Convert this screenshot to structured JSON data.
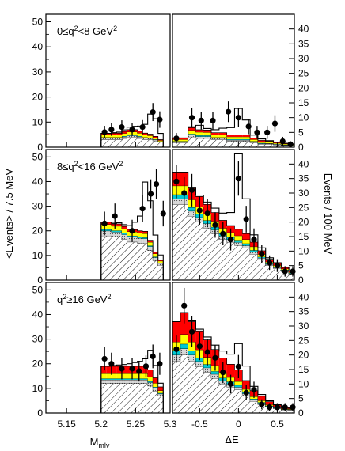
{
  "chart_data": {
    "type": "histogram",
    "left_axis": {
      "label": "<Events> / 7.5 MeV",
      "ticks": [
        "0",
        "10",
        "20",
        "30",
        "40",
        "50"
      ],
      "ylim": [
        0,
        53
      ]
    },
    "right_axis": {
      "label": "Events / 100 MeV",
      "ticks": [
        "0",
        "5",
        "10",
        "15",
        "20",
        "25",
        "30",
        "35",
        "40"
      ],
      "ylim": [
        0,
        45
      ]
    },
    "x_left": {
      "label": "M_mlv",
      "label_main": "M",
      "label_sub": "mlv",
      "ticks": [
        "5.15",
        "5.2",
        "5.25",
        "5.3"
      ],
      "xlim": [
        5.12,
        5.3
      ]
    },
    "x_right": {
      "label": "ΔE",
      "ticks": [
        "-0.5",
        "0",
        "0.5"
      ],
      "xlim": [
        -0.85,
        0.72
      ]
    },
    "colors": {
      "hatch_fill": "#ffffff",
      "light_gray": "#d9d9d9",
      "cyan": "#00c8d2",
      "yellow": "#ffff00",
      "red": "#ff0000",
      "line": "#000000"
    },
    "rows": [
      {
        "title": "0≤q²<8 GeV²",
        "title_parts": {
          "pre": "0≤q",
          "sup1": "2",
          "mid": "<8 GeV",
          "sup2": "2"
        },
        "mbc": {
          "bins": [
            5.2,
            5.2075,
            5.215,
            5.2225,
            5.23,
            5.2375,
            5.245,
            5.2525,
            5.26,
            5.2675,
            5.275,
            5.2825,
            5.29
          ],
          "hatch": [
            3,
            3,
            3,
            3,
            3.5,
            4,
            4,
            3.5,
            3,
            3,
            2.5,
            2
          ],
          "gray": [
            0.6,
            0.6,
            0.6,
            0.6,
            0.6,
            0.6,
            0.6,
            0.6,
            0.6,
            0.5,
            0.4,
            0.2
          ],
          "cyan": [
            0.3,
            0.3,
            0.3,
            0.3,
            0.3,
            0.3,
            0.3,
            0.3,
            0.3,
            0.2,
            0.2,
            0.1
          ],
          "yellow": [
            1.0,
            1.0,
            1.0,
            1.0,
            1.1,
            1.2,
            1.2,
            1.2,
            1.0,
            0.9,
            0.7,
            0.4
          ],
          "red": [
            0.6,
            0.6,
            0.7,
            0.7,
            0.8,
            0.9,
            0.9,
            0.8,
            0.7,
            0.6,
            0.5,
            0.3
          ],
          "signal": [
            0,
            0,
            0.2,
            0.4,
            0.6,
            1.0,
            1.3,
            2.0,
            3.5,
            8.0,
            7.0,
            2.5
          ],
          "points": {
            "x": [
              5.205,
              5.215,
              5.23,
              5.245,
              5.26,
              5.275,
              5.285
            ],
            "y": [
              6,
              7,
              8,
              7,
              8,
              14,
              11
            ],
            "err": [
              2.5,
              2.5,
              2.7,
              2.5,
              2.8,
              3.6,
              3.3
            ]
          }
        },
        "de": {
          "bins": [
            -0.85,
            -0.75,
            -0.65,
            -0.55,
            -0.45,
            -0.35,
            -0.25,
            -0.15,
            -0.05,
            0.05,
            0.15,
            0.25,
            0.35,
            0.45,
            0.55,
            0.65,
            0.72
          ],
          "hatch": [
            1.5,
            1.5,
            3.5,
            3.0,
            3.0,
            2.5,
            2.5,
            2.0,
            2.0,
            2.0,
            1.5,
            1.0,
            1.0,
            0.8,
            0.6,
            0.5
          ],
          "gray": [
            0.3,
            0.3,
            0.6,
            0.6,
            0.6,
            0.5,
            0.5,
            0.4,
            0.4,
            0.4,
            0.3,
            0.2,
            0.2,
            0.2,
            0.1,
            0.1
          ],
          "cyan": [
            0.2,
            0.2,
            0.4,
            0.4,
            0.4,
            0.3,
            0.3,
            0.3,
            0.3,
            0.3,
            0.2,
            0.2,
            0.1,
            0.1,
            0.1,
            0.1
          ],
          "yellow": [
            0.6,
            0.6,
            1.2,
            1.1,
            1.0,
            0.9,
            0.9,
            0.8,
            0.8,
            0.8,
            0.6,
            0.5,
            0.4,
            0.3,
            0.3,
            0.2
          ],
          "red": [
            0.5,
            0.5,
            0.9,
            0.8,
            0.8,
            0.7,
            0.7,
            0.6,
            0.6,
            0.7,
            0.5,
            0.4,
            0.3,
            0.3,
            0.2,
            0.2
          ],
          "signal": [
            0,
            0,
            0.3,
            1.5,
            0.5,
            1.0,
            1.5,
            2.5,
            9.0,
            5.0,
            1.0,
            0.5,
            0.2,
            0,
            0,
            0
          ],
          "points": {
            "x": [
              -0.8,
              -0.6,
              -0.48,
              -0.33,
              -0.13,
              0.0,
              0.13,
              0.24,
              0.37,
              0.47,
              0.57,
              0.67
            ],
            "y": [
              3,
              10,
              9,
              9,
              12,
              10,
              7,
              5,
              5,
              8,
              2,
              1
            ],
            "err": [
              1.8,
              3.2,
              3.0,
              3.0,
              3.5,
              3.2,
              2.6,
              2.2,
              2.2,
              2.8,
              1.5,
              1.0
            ]
          }
        }
      },
      {
        "title": "8≤q²<16 GeV²",
        "title_parts": {
          "pre": "8≤q",
          "sup1": "2",
          "mid": "<16 GeV",
          "sup2": "2"
        },
        "mbc": {
          "bins": [
            5.2,
            5.2075,
            5.215,
            5.2225,
            5.23,
            5.2375,
            5.245,
            5.2525,
            5.26,
            5.2675,
            5.275,
            5.2825,
            5.29
          ],
          "hatch": [
            18,
            18,
            17.5,
            17.5,
            16.5,
            15.5,
            15.5,
            15,
            15,
            12,
            8,
            6
          ],
          "gray": [
            2.0,
            2.0,
            2.0,
            2.0,
            2.0,
            2.0,
            2.0,
            2.0,
            1.8,
            1.6,
            1.2,
            0.8
          ],
          "cyan": [
            0.6,
            0.6,
            0.6,
            0.6,
            0.6,
            0.5,
            0.5,
            0.5,
            0.5,
            0.4,
            0.3,
            0.2
          ],
          "yellow": [
            2.0,
            2.0,
            1.8,
            1.8,
            1.8,
            1.7,
            1.6,
            1.6,
            1.6,
            1.4,
            1.2,
            0.8
          ],
          "red": [
            1.0,
            1.0,
            0.9,
            0.9,
            0.9,
            0.9,
            0.9,
            0.9,
            0.9,
            0.8,
            0.6,
            0.4
          ],
          "signal": [
            0,
            0,
            0.3,
            0.5,
            0.7,
            1.5,
            3.0,
            6.0,
            20.0,
            16.0,
            7.0,
            2.0
          ],
          "points": {
            "x": [
              5.205,
              5.22,
              5.245,
              5.26,
              5.272,
              5.28,
              5.29
            ],
            "y": [
              23,
              26,
              20,
              29,
              35,
              39,
              27
            ],
            "err": [
              4.8,
              5.1,
              4.5,
              5.4,
              5.9,
              6.2,
              5.2
            ]
          }
        },
        "de": {
          "bins": [
            -0.85,
            -0.75,
            -0.65,
            -0.55,
            -0.45,
            -0.35,
            -0.25,
            -0.15,
            -0.05,
            0.05,
            0.15,
            0.25,
            0.35,
            0.45,
            0.55,
            0.65,
            0.72
          ],
          "hatch": [
            26,
            26,
            22,
            20,
            18,
            16,
            14,
            13,
            12,
            11,
            9,
            7,
            5,
            4,
            3,
            2
          ],
          "gray": [
            2.0,
            2.0,
            1.8,
            1.6,
            1.5,
            1.3,
            1.2,
            1.0,
            1.0,
            0.9,
            0.7,
            0.6,
            0.4,
            0.3,
            0.3,
            0.2
          ],
          "cyan": [
            1.5,
            1.5,
            1.3,
            1.2,
            1.1,
            1.0,
            0.9,
            0.8,
            0.8,
            0.7,
            0.6,
            0.4,
            0.3,
            0.3,
            0.2,
            0.2
          ],
          "yellow": [
            3.0,
            3.0,
            2.6,
            2.4,
            2.2,
            2.0,
            1.8,
            1.6,
            1.5,
            1.4,
            1.2,
            0.9,
            0.6,
            0.5,
            0.4,
            0.3
          ],
          "red": [
            4.5,
            4.5,
            4.0,
            3.6,
            3.3,
            3.0,
            2.7,
            2.4,
            2.2,
            2.0,
            1.6,
            1.2,
            0.9,
            0.7,
            0.5,
            0.4
          ],
          "signal": [
            0,
            0,
            0.3,
            0.5,
            0.8,
            1.5,
            2.5,
            4.5,
            26.0,
            12.0,
            2.5,
            1.0,
            0.5,
            0.2,
            0,
            0
          ],
          "points": {
            "x": [
              -0.8,
              -0.7,
              -0.6,
              -0.5,
              -0.4,
              -0.3,
              -0.2,
              -0.1,
              0.0,
              0.1,
              0.2,
              0.3,
              0.4,
              0.5,
              0.6,
              0.7
            ],
            "y": [
              34,
              30,
              31,
              24,
              23,
              19,
              16,
              14,
              35,
              21,
              14,
              9,
              6,
              5,
              3,
              3
            ],
            "err": [
              5.8,
              5.5,
              5.6,
              4.9,
              4.8,
              4.4,
              4.0,
              3.8,
              5.9,
              4.6,
              3.8,
              3.0,
              2.5,
              2.2,
              1.8,
              1.8
            ]
          }
        }
      },
      {
        "title": "q²≥16 GeV²",
        "title_parts": {
          "pre": "q",
          "sup1": "2",
          "mid": "≥16 GeV",
          "sup2": "2"
        },
        "mbc": {
          "bins": [
            5.2,
            5.2075,
            5.215,
            5.2225,
            5.23,
            5.2375,
            5.245,
            5.2525,
            5.26,
            5.2675,
            5.275,
            5.2825,
            5.29
          ],
          "hatch": [
            12,
            12,
            12,
            12,
            12,
            12,
            12,
            12,
            12,
            11,
            9,
            7
          ],
          "gray": [
            1.5,
            1.5,
            1.5,
            1.5,
            1.5,
            1.5,
            1.5,
            1.5,
            1.5,
            1.4,
            1.2,
            0.8
          ],
          "cyan": [
            0.5,
            0.5,
            0.5,
            0.5,
            0.5,
            0.5,
            0.5,
            0.5,
            0.5,
            0.5,
            0.4,
            0.3
          ],
          "yellow": [
            2.0,
            2.0,
            2.0,
            2.0,
            2.0,
            2.0,
            2.0,
            2.0,
            2.0,
            1.8,
            1.5,
            1.0
          ],
          "red": [
            3.0,
            3.0,
            3.0,
            3.0,
            3.0,
            3.0,
            3.0,
            3.0,
            3.0,
            2.8,
            2.2,
            1.5
          ],
          "signal": [
            0,
            0,
            0.3,
            0.5,
            0.7,
            1.0,
            1.5,
            2.0,
            3.0,
            8.0,
            5.0,
            1.5
          ],
          "points": {
            "x": [
              5.205,
              5.215,
              5.23,
              5.245,
              5.255,
              5.265,
              5.275,
              5.285
            ],
            "y": [
              22,
              20,
              18,
              18,
              17,
              19,
              23,
              20
            ],
            "err": [
              4.7,
              4.5,
              4.3,
              4.3,
              4.2,
              4.4,
              4.8,
              4.5
            ]
          }
        },
        "de": {
          "bins": [
            -0.85,
            -0.75,
            -0.65,
            -0.55,
            -0.45,
            -0.35,
            -0.25,
            -0.15,
            -0.05,
            0.05,
            0.15,
            0.25,
            0.35,
            0.45,
            0.55,
            0.65,
            0.72
          ],
          "hatch": [
            18,
            20,
            18,
            16,
            14,
            12,
            10,
            9,
            8,
            6,
            4,
            3,
            2,
            1.5,
            1,
            1
          ],
          "gray": [
            2.0,
            2.2,
            2.0,
            1.8,
            1.6,
            1.4,
            1.2,
            1.0,
            0.9,
            0.7,
            0.5,
            0.4,
            0.3,
            0.2,
            0.2,
            0.1
          ],
          "cyan": [
            1.5,
            1.6,
            1.5,
            1.3,
            1.2,
            1.0,
            0.9,
            0.8,
            0.7,
            0.5,
            0.4,
            0.3,
            0.2,
            0.2,
            0.1,
            0.1
          ],
          "yellow": [
            3.0,
            3.3,
            3.0,
            2.7,
            2.4,
            2.0,
            1.8,
            1.5,
            1.3,
            1.0,
            0.8,
            0.6,
            0.4,
            0.3,
            0.2,
            0.2
          ],
          "red": [
            7.0,
            7.5,
            7.0,
            6.5,
            6.0,
            5.5,
            5.0,
            4.5,
            4.0,
            3.0,
            2.0,
            1.5,
            1.0,
            0.6,
            0.4,
            0.3
          ],
          "signal": [
            0,
            0,
            0.3,
            0.6,
            1.0,
            1.5,
            2.5,
            3.5,
            9.0,
            5.0,
            1.5,
            0.6,
            0.3,
            0.1,
            0,
            0
          ],
          "points": {
            "x": [
              -0.8,
              -0.7,
              -0.6,
              -0.5,
              -0.4,
              -0.3,
              -0.2,
              -0.1,
              0.0,
              0.1,
              0.2,
              0.3,
              0.4,
              0.5,
              0.6,
              0.7
            ],
            "y": [
              22,
              37,
              28,
              23,
              21,
              19,
              14,
              10,
              16,
              7,
              8,
              3,
              2,
              2,
              2,
              2
            ],
            "err": [
              4.7,
              6.1,
              5.3,
              4.8,
              4.6,
              4.4,
              3.7,
              3.2,
              4.0,
              2.6,
              2.8,
              1.7,
              1.4,
              1.4,
              1.4,
              1.4
            ]
          }
        }
      }
    ]
  }
}
